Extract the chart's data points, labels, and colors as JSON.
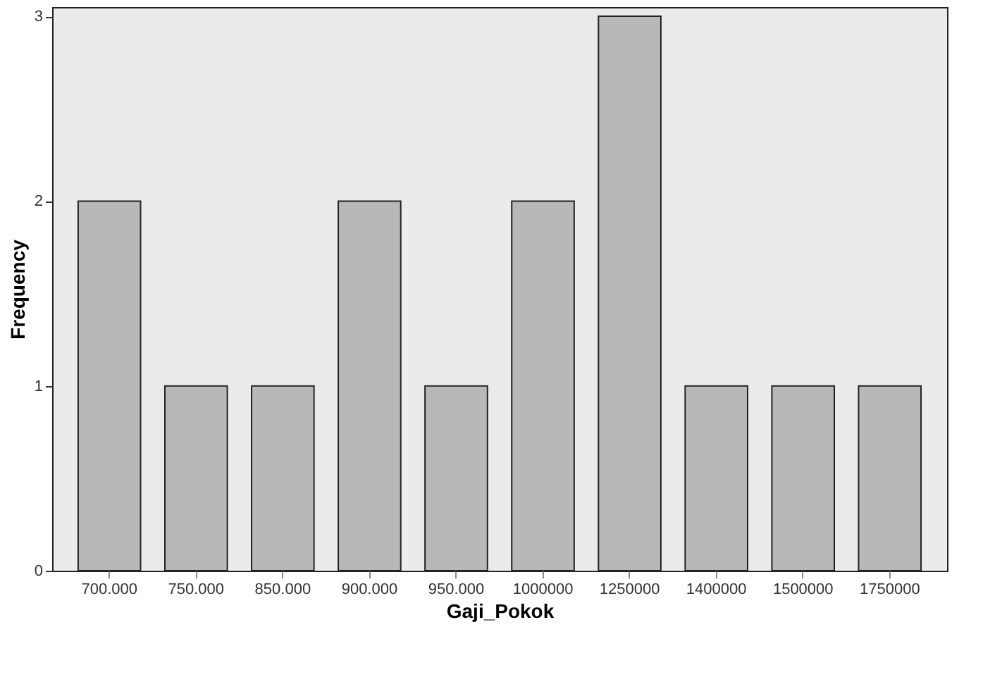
{
  "chart_data": {
    "type": "bar",
    "xlabel": "Gaji_Pokok",
    "ylabel": "Frequency",
    "categories": [
      "700.000",
      "750.000",
      "850.000",
      "900.000",
      "950.000",
      "1000000",
      "1250000",
      "1400000",
      "1500000",
      "1750000"
    ],
    "values": [
      2,
      1,
      1,
      2,
      1,
      2,
      3,
      1,
      1,
      1
    ],
    "color": "#b8b8b8",
    "ylim": [
      0,
      3.05
    ],
    "yticks": [
      0,
      1,
      2,
      3
    ],
    "grid": false
  }
}
